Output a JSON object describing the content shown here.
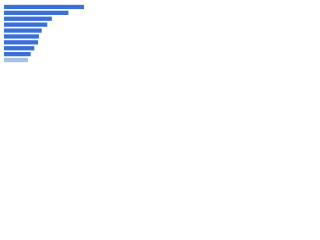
{
  "chart_data": {
    "type": "hbar",
    "categories": [
      null,
      null,
      null,
      null,
      null,
      null,
      null,
      null,
      null,
      null
    ],
    "values": [
      87,
      70,
      52,
      47,
      41,
      38,
      37,
      33,
      29,
      26
    ],
    "colors": [
      "#3a6fd8",
      "#3a6fd8",
      "#3a6fd8",
      "#3a6fd8",
      "#3a6fd8",
      "#3a6fd8",
      "#3a6fd8",
      "#3a6fd8",
      "#3a6fd8",
      "#a8bfe6"
    ],
    "xlim": [
      0,
      100
    ]
  }
}
